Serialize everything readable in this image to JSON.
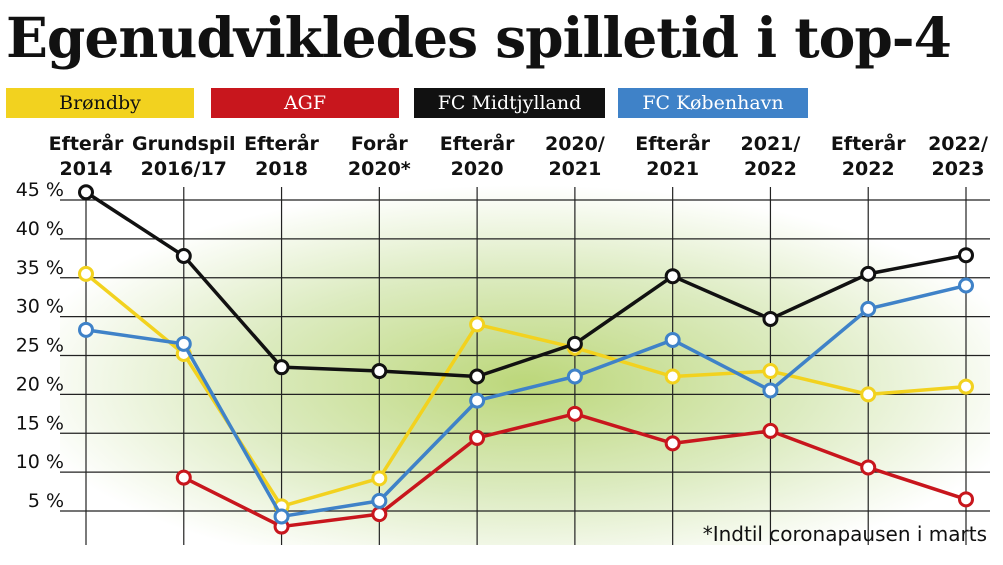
{
  "title": "Egenudvikledes spilletid i top-4",
  "footnote": "*Indtil coronapausen i marts",
  "chart_data": {
    "type": "line",
    "categories": [
      [
        "Efterår",
        "2014"
      ],
      [
        "Grundspil",
        "2016/17"
      ],
      [
        "Efterår",
        "2018"
      ],
      [
        "Forår",
        "2020*"
      ],
      [
        "Efterår",
        "2020"
      ],
      [
        "2020/",
        "2021"
      ],
      [
        "Efterår",
        "2021"
      ],
      [
        "2021/",
        "2022"
      ],
      [
        "Efterår",
        "2022"
      ],
      [
        "2022/",
        "2023"
      ]
    ],
    "y_ticks": [
      "45 %",
      "40 %",
      "35 %",
      "30 %",
      "25 %",
      "20 %",
      "15 %",
      "10 %",
      "5 %"
    ],
    "ylim": [
      5,
      45
    ],
    "grid": true,
    "legend_position": "top",
    "series": [
      {
        "name": "Brøndby",
        "color": "#f2d21f",
        "label_color": "#111111",
        "values": [
          35.5,
          25.2,
          5.6,
          9.2,
          29.0,
          26.0,
          22.3,
          23.0,
          20.0,
          21.0
        ]
      },
      {
        "name": "AGF",
        "color": "#c8161d",
        "label_color": "#ffffff",
        "values": [
          null,
          9.3,
          3.0,
          4.6,
          14.4,
          17.5,
          13.7,
          15.3,
          10.6,
          6.5
        ]
      },
      {
        "name": "FC Midtjylland",
        "color": "#111111",
        "label_color": "#ffffff",
        "values": [
          46.0,
          37.8,
          23.5,
          23.0,
          22.3,
          26.5,
          35.2,
          29.7,
          35.5,
          37.9
        ]
      },
      {
        "name": "FC København",
        "color": "#3f82c8",
        "label_color": "#ffffff",
        "values": [
          28.3,
          26.5,
          4.3,
          6.3,
          19.2,
          22.3,
          27.0,
          20.5,
          31.0,
          34.0
        ]
      }
    ]
  }
}
